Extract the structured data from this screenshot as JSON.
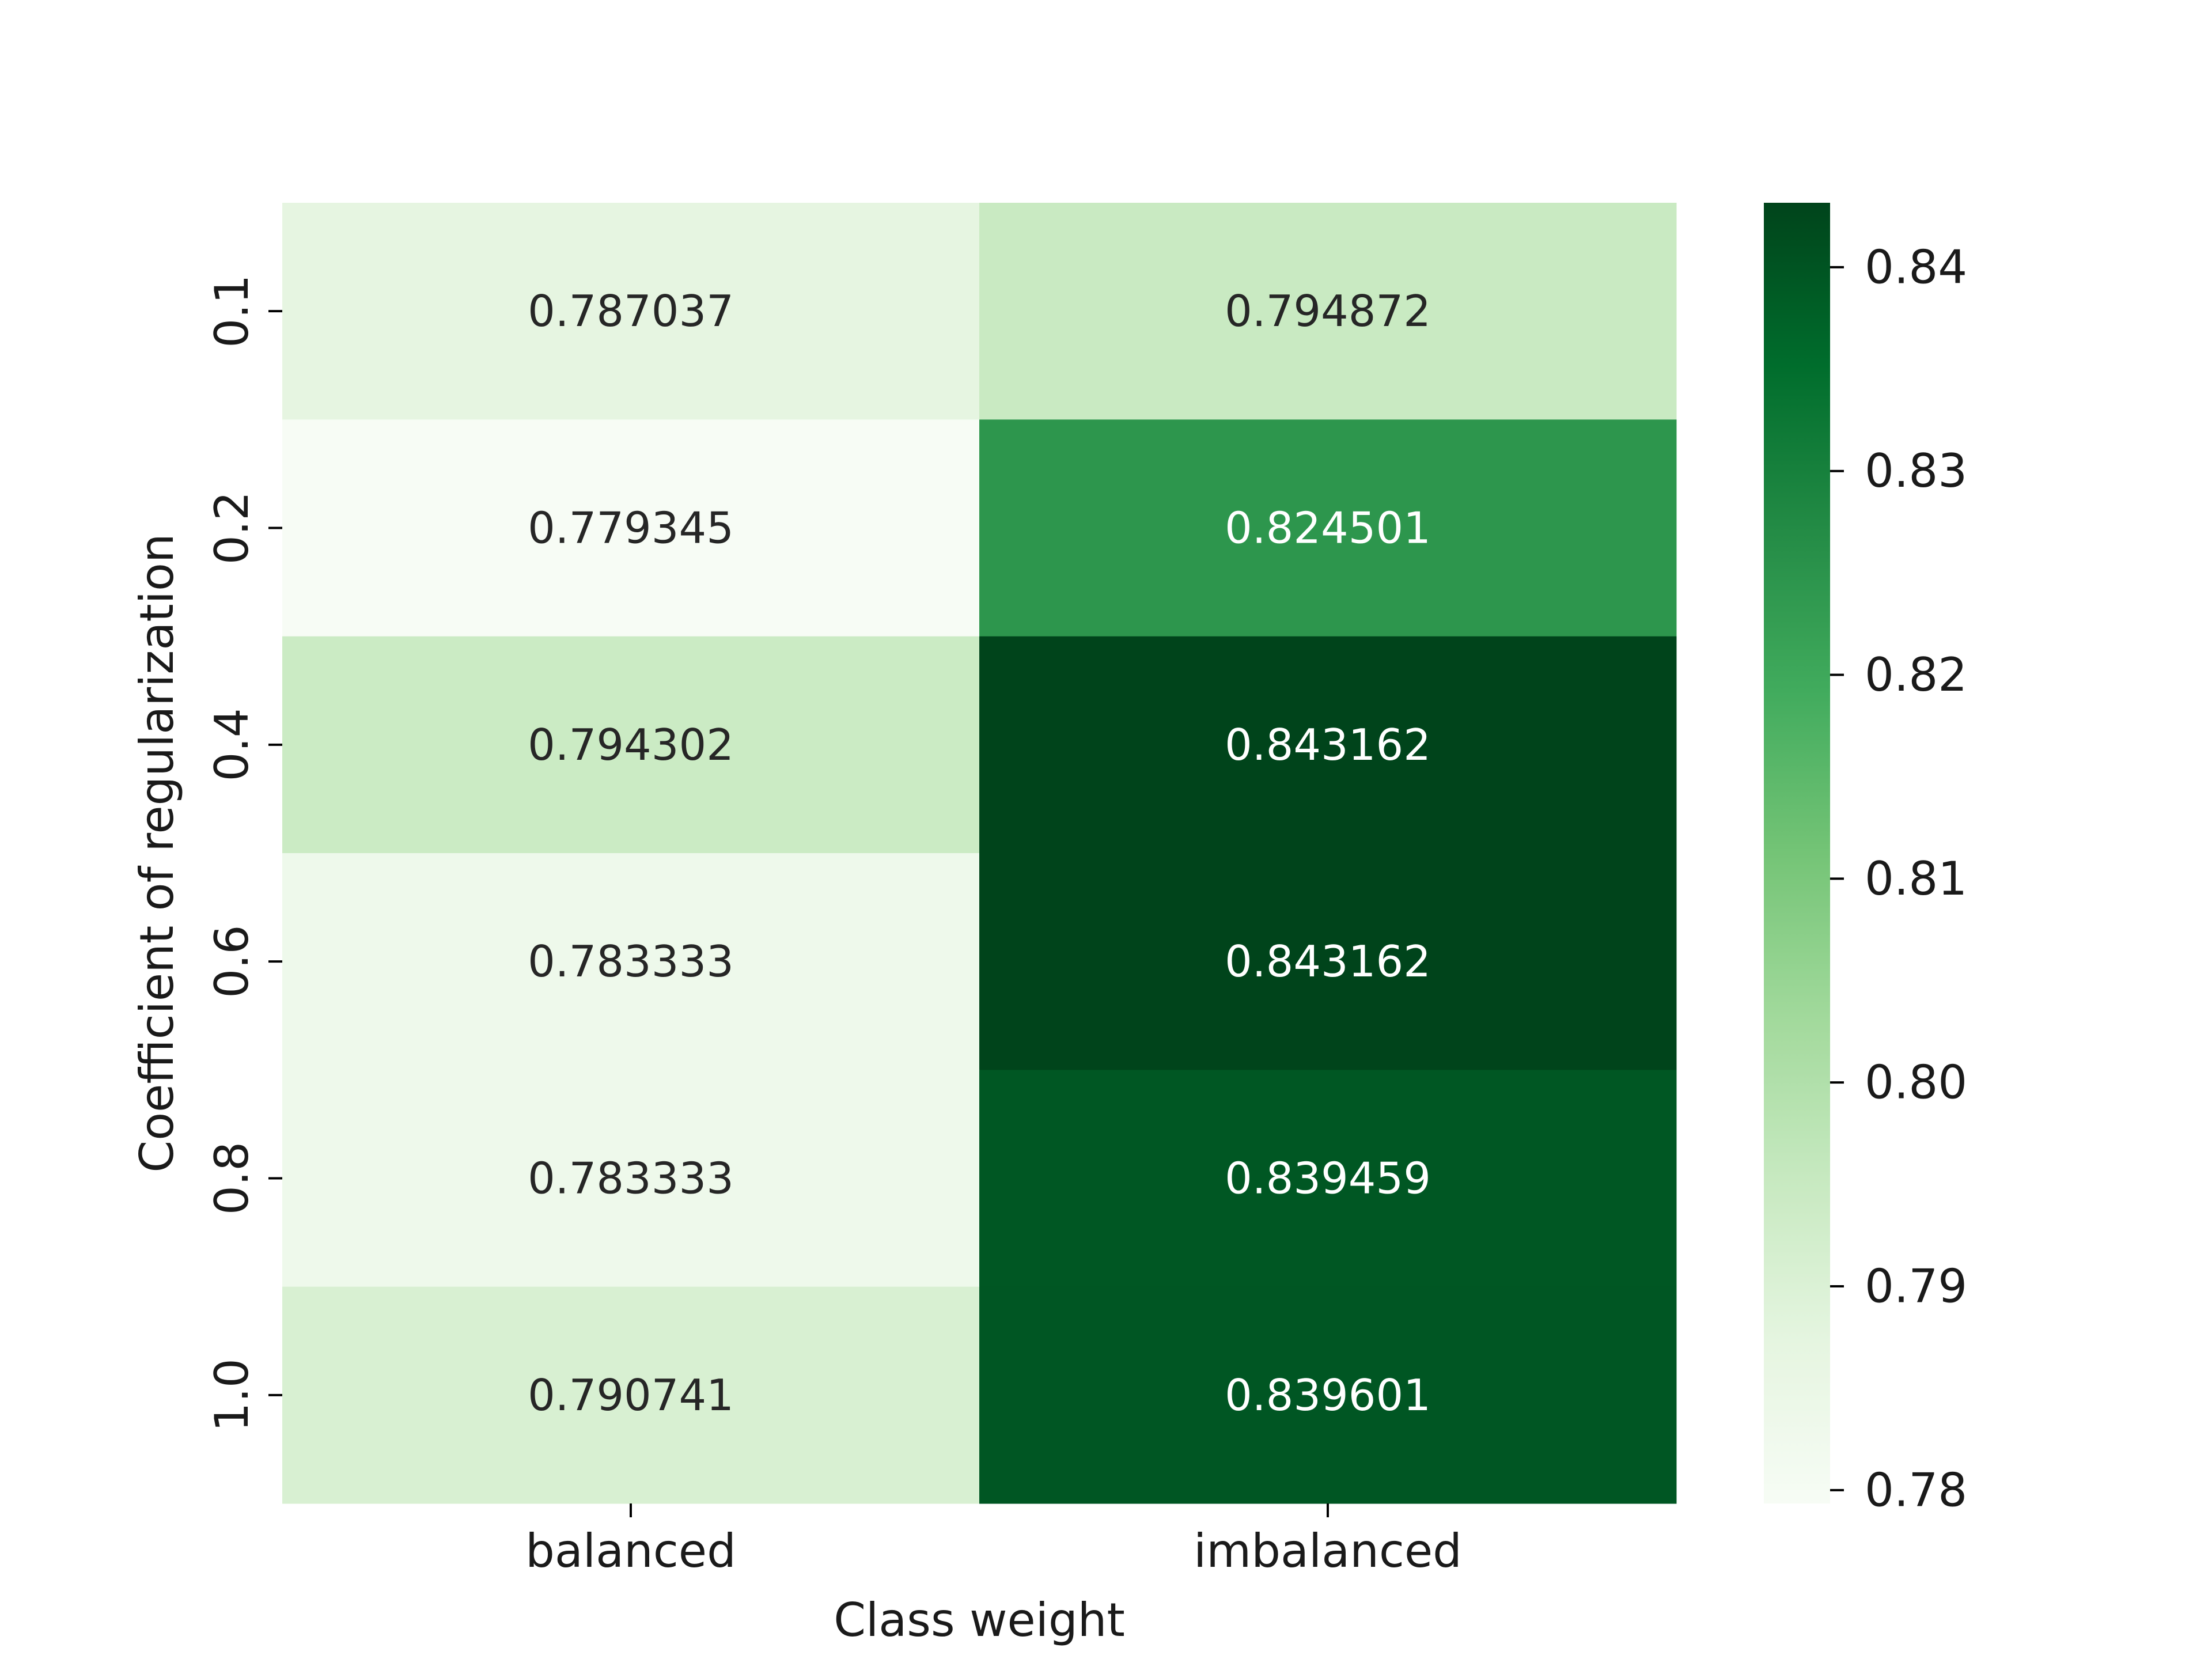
{
  "chart_data": {
    "type": "heatmap",
    "title": "",
    "xlabel": "Class weight",
    "ylabel": "Coefficient of regularization",
    "x_categories": [
      "balanced",
      "imbalanced"
    ],
    "y_categories": [
      "0.1",
      "0.2",
      "0.4",
      "0.6",
      "0.8",
      "1.0"
    ],
    "values": [
      [
        0.787037,
        0.794872
      ],
      [
        0.779345,
        0.824501
      ],
      [
        0.794302,
        0.843162
      ],
      [
        0.783333,
        0.843162
      ],
      [
        0.783333,
        0.839459
      ],
      [
        0.790741,
        0.839601
      ]
    ],
    "cell_labels": [
      [
        "0.787037",
        "0.794872"
      ],
      [
        "0.779345",
        "0.824501"
      ],
      [
        "0.794302",
        "0.843162"
      ],
      [
        "0.783333",
        "0.843162"
      ],
      [
        "0.783333",
        "0.839459"
      ],
      [
        "0.790741",
        "0.839601"
      ]
    ],
    "colormap": "Greens",
    "colorbar": {
      "vmin": 0.779345,
      "vmax": 0.843162,
      "ticks": [
        0.78,
        0.79,
        0.8,
        0.81,
        0.82,
        0.83,
        0.84
      ],
      "tick_labels": [
        "0.78",
        "0.79",
        "0.80",
        "0.81",
        "0.82",
        "0.83",
        "0.84"
      ]
    },
    "annotation_colors": {
      "dark_text": "#262626",
      "light_text": "#ffffff"
    },
    "grid": false
  }
}
